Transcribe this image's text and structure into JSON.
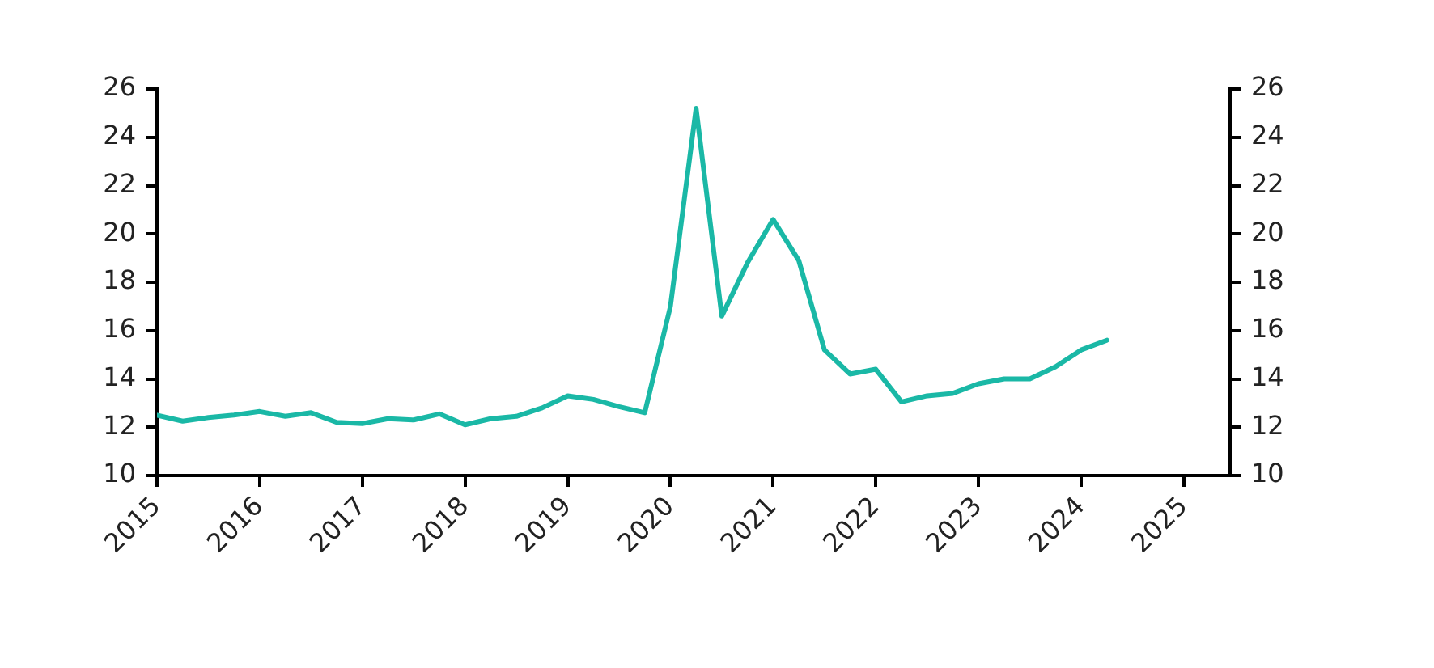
{
  "chart_data": {
    "type": "line",
    "x": [
      2015,
      2015.25,
      2015.5,
      2015.75,
      2016,
      2016.25,
      2016.5,
      2016.75,
      2017,
      2017.25,
      2017.5,
      2017.75,
      2018,
      2018.25,
      2018.5,
      2018.75,
      2019,
      2019.25,
      2019.5,
      2019.75,
      2020,
      2020.25,
      2020.5,
      2020.75,
      2021,
      2021.25,
      2021.5,
      2021.75,
      2022,
      2022.25,
      2022.5,
      2022.75,
      2023,
      2023.25,
      2023.5,
      2023.75,
      2024,
      2024.25
    ],
    "series": [
      {
        "color": "#1ab8a6",
        "values": [
          12.5,
          12.25,
          12.4,
          12.5,
          12.65,
          12.45,
          12.6,
          12.2,
          12.15,
          12.35,
          12.3,
          12.55,
          12.1,
          12.35,
          12.45,
          12.8,
          13.3,
          13.15,
          12.85,
          12.6,
          17.0,
          25.2,
          16.6,
          18.8,
          20.6,
          18.9,
          15.2,
          14.2,
          14.4,
          13.05,
          13.3,
          13.4,
          13.8,
          14.0,
          14.0,
          14.5,
          15.2,
          15.6
        ]
      }
    ],
    "xlim": [
      2015,
      2025.45
    ],
    "xticks": [
      2015,
      2016,
      2017,
      2018,
      2019,
      2020,
      2021,
      2022,
      2023,
      2024,
      2025
    ],
    "ylim": [
      10,
      26
    ],
    "yticks": [
      10,
      12,
      14,
      16,
      18,
      20,
      22,
      24,
      26
    ],
    "y2lim": [
      10,
      26
    ],
    "y2ticks": [
      10,
      12,
      14,
      16,
      18,
      20,
      22,
      24,
      26
    ],
    "grid": false,
    "legend": false,
    "marker": "none",
    "line_style": "solid"
  }
}
